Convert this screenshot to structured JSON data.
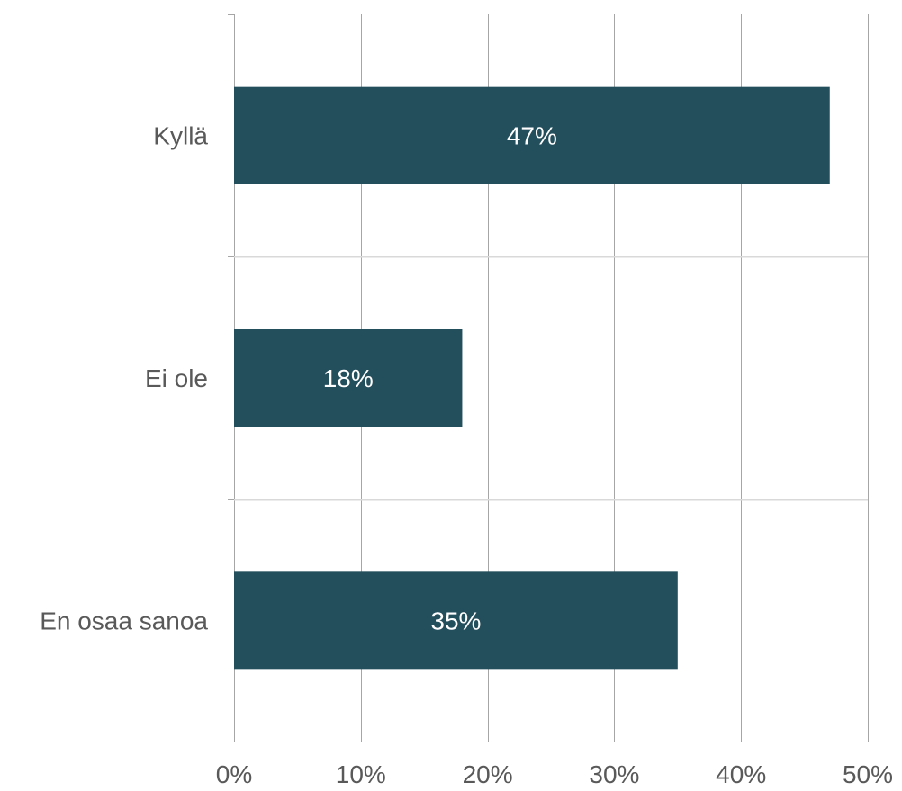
{
  "chart_data": {
    "type": "bar",
    "orientation": "horizontal",
    "categories": [
      "Kyllä",
      "Ei ole",
      "En osaa sanoa"
    ],
    "values": [
      47,
      18,
      35
    ],
    "data_labels": [
      "47%",
      "18%",
      "35%"
    ],
    "x_ticks": [
      "0%",
      "10%",
      "20%",
      "30%",
      "40%",
      "50%"
    ],
    "xlim": [
      0,
      50
    ],
    "grid": true,
    "legend": "none",
    "colors": {
      "bar": "#234E5C",
      "grid": "#A6A6A6",
      "category_grid": "#D9D9D9",
      "text": "#595959",
      "data_label": "#FFFFFF"
    }
  }
}
